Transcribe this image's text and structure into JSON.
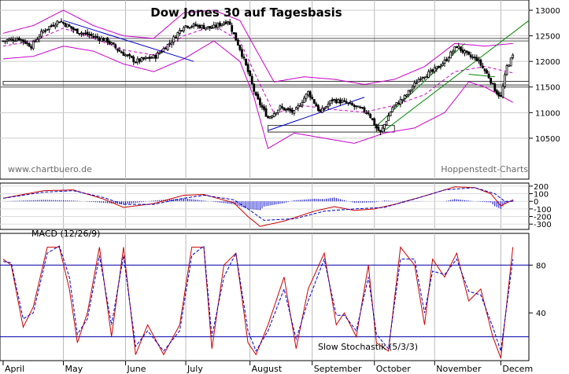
{
  "chart_data": {
    "title": "Dow Jones 30 auf Tagesbasis",
    "watermark_left": "www.chartbuero.de",
    "watermark_right": "Hoppenstedt-Charts",
    "months": [
      "April",
      "May",
      "June",
      "July",
      "August",
      "September",
      "October",
      "November",
      "Decem"
    ],
    "colors": {
      "candle": "#000000",
      "bollinger": "#cc00cc",
      "trend_blue": "#0000cc",
      "trend_green": "#008800",
      "macd_line": "#cc0000",
      "signal_line": "#0000cc",
      "histogram": "#0000cc",
      "stoch_k": "#cc0000",
      "stoch_d": "#0000cc",
      "ref_line": "#0000aa"
    },
    "price_panel": {
      "type": "candlestick",
      "ylim": [
        9700,
        13200
      ],
      "yticks": [
        10500,
        11000,
        11500,
        12000,
        12500,
        13000
      ],
      "key": [
        [
          0,
          12400
        ],
        [
          8,
          12450
        ],
        [
          14,
          12300
        ],
        [
          20,
          12600
        ],
        [
          28,
          12800
        ],
        [
          36,
          12600
        ],
        [
          44,
          12500
        ],
        [
          52,
          12400
        ],
        [
          58,
          12200
        ],
        [
          66,
          12000
        ],
        [
          76,
          12100
        ],
        [
          84,
          12400
        ],
        [
          90,
          12700
        ],
        [
          96,
          12700
        ],
        [
          104,
          12650
        ],
        [
          112,
          12800
        ],
        [
          118,
          12250
        ],
        [
          122,
          11800
        ],
        [
          126,
          11300
        ],
        [
          132,
          10900
        ],
        [
          138,
          11100
        ],
        [
          145,
          11000
        ],
        [
          152,
          11400
        ],
        [
          158,
          11000
        ],
        [
          164,
          11250
        ],
        [
          170,
          11200
        ],
        [
          176,
          11100
        ],
        [
          182,
          11000
        ],
        [
          186,
          10700
        ],
        [
          188,
          10600
        ],
        [
          194,
          11100
        ],
        [
          200,
          11300
        ],
        [
          208,
          11700
        ],
        [
          214,
          11800
        ],
        [
          220,
          12000
        ],
        [
          226,
          12300
        ],
        [
          232,
          12100
        ],
        [
          236,
          12050
        ],
        [
          242,
          11700
        ],
        [
          245,
          11450
        ],
        [
          248,
          11300
        ],
        [
          251,
          11900
        ],
        [
          254,
          12100
        ]
      ],
      "bollinger_upper_key": [
        [
          0,
          12550
        ],
        [
          15,
          12700
        ],
        [
          30,
          13000
        ],
        [
          45,
          12700
        ],
        [
          60,
          12500
        ],
        [
          75,
          12450
        ],
        [
          90,
          12950
        ],
        [
          105,
          13000
        ],
        [
          118,
          12800
        ],
        [
          125,
          12300
        ],
        [
          135,
          11600
        ],
        [
          150,
          11700
        ],
        [
          165,
          11650
        ],
        [
          180,
          11550
        ],
        [
          195,
          11650
        ],
        [
          210,
          11900
        ],
        [
          225,
          12350
        ],
        [
          240,
          12300
        ],
        [
          254,
          12350
        ]
      ],
      "bollinger_lower_key": [
        [
          0,
          12050
        ],
        [
          15,
          12100
        ],
        [
          30,
          12300
        ],
        [
          45,
          12200
        ],
        [
          60,
          11950
        ],
        [
          75,
          11800
        ],
        [
          90,
          12050
        ],
        [
          105,
          12400
        ],
        [
          118,
          12000
        ],
        [
          125,
          11300
        ],
        [
          132,
          10300
        ],
        [
          145,
          10600
        ],
        [
          160,
          10500
        ],
        [
          175,
          10400
        ],
        [
          190,
          10600
        ],
        [
          205,
          10700
        ],
        [
          220,
          11000
        ],
        [
          232,
          11600
        ],
        [
          240,
          11500
        ],
        [
          254,
          11200
        ]
      ],
      "horizontal_lines": [
        12450,
        12400,
        11500
      ],
      "support_box": {
        "x": [
          132,
          195
        ],
        "y": [
          10620,
          10750
        ]
      },
      "resistance_box": {
        "x": [
          0,
          262
        ],
        "y": [
          11540,
          11610
        ]
      },
      "trendlines": [
        {
          "color": "blue",
          "x": [
            30,
            95
          ],
          "y": [
            12800,
            12000
          ]
        },
        {
          "color": "blue",
          "x": [
            132,
            180
          ],
          "y": [
            10650,
            11300
          ]
        },
        {
          "color": "green",
          "x": [
            190,
            262
          ],
          "y": [
            10650,
            12800
          ]
        },
        {
          "color": "green",
          "x": [
            185,
            230
          ],
          "y": [
            10700,
            12350
          ]
        },
        {
          "color": "green",
          "x": [
            232,
            245
          ],
          "y": [
            11750,
            11700
          ]
        }
      ]
    },
    "macd_panel": {
      "label": "MACD (12/26/9)",
      "ylim": [
        -370,
        240
      ],
      "yticks": [
        200,
        100,
        0,
        -100,
        -200,
        -300
      ],
      "tick_labels": [
        "200",
        "100",
        "0",
        "-100",
        "-200",
        "-300"
      ],
      "macd_key": [
        [
          0,
          40
        ],
        [
          20,
          140
        ],
        [
          35,
          150
        ],
        [
          50,
          30
        ],
        [
          60,
          -80
        ],
        [
          75,
          -30
        ],
        [
          90,
          80
        ],
        [
          100,
          90
        ],
        [
          115,
          -20
        ],
        [
          122,
          -200
        ],
        [
          128,
          -330
        ],
        [
          140,
          -260
        ],
        [
          155,
          -130
        ],
        [
          165,
          -70
        ],
        [
          175,
          -120
        ],
        [
          185,
          -100
        ],
        [
          195,
          -40
        ],
        [
          210,
          70
        ],
        [
          225,
          190
        ],
        [
          235,
          180
        ],
        [
          243,
          100
        ],
        [
          248,
          -60
        ],
        [
          254,
          20
        ]
      ],
      "signal_key": [
        [
          0,
          40
        ],
        [
          20,
          120
        ],
        [
          35,
          140
        ],
        [
          50,
          50
        ],
        [
          60,
          -40
        ],
        [
          75,
          -40
        ],
        [
          90,
          40
        ],
        [
          100,
          80
        ],
        [
          115,
          20
        ],
        [
          122,
          -100
        ],
        [
          130,
          -250
        ],
        [
          145,
          -230
        ],
        [
          160,
          -130
        ],
        [
          175,
          -100
        ],
        [
          190,
          -80
        ],
        [
          205,
          30
        ],
        [
          220,
          150
        ],
        [
          235,
          180
        ],
        [
          245,
          100
        ],
        [
          250,
          0
        ],
        [
          254,
          0
        ]
      ]
    },
    "stoch_panel": {
      "label": "Slow Stochastik (5/3/3)",
      "ylim": [
        0,
        100
      ],
      "yticks": [
        40,
        80
      ],
      "tick_labels": [
        "40",
        "80"
      ],
      "ref_lines": [
        80,
        20
      ],
      "k_key": [
        [
          0,
          85
        ],
        [
          4,
          80
        ],
        [
          10,
          28
        ],
        [
          15,
          45
        ],
        [
          22,
          95
        ],
        [
          28,
          95
        ],
        [
          33,
          60
        ],
        [
          37,
          15
        ],
        [
          42,
          40
        ],
        [
          48,
          95
        ],
        [
          54,
          20
        ],
        [
          60,
          95
        ],
        [
          66,
          5
        ],
        [
          72,
          30
        ],
        [
          80,
          5
        ],
        [
          88,
          30
        ],
        [
          94,
          95
        ],
        [
          100,
          95
        ],
        [
          104,
          10
        ],
        [
          110,
          80
        ],
        [
          116,
          90
        ],
        [
          122,
          15
        ],
        [
          126,
          5
        ],
        [
          132,
          30
        ],
        [
          140,
          70
        ],
        [
          146,
          10
        ],
        [
          152,
          60
        ],
        [
          160,
          90
        ],
        [
          166,
          30
        ],
        [
          170,
          40
        ],
        [
          176,
          20
        ],
        [
          182,
          80
        ],
        [
          186,
          15
        ],
        [
          192,
          8
        ],
        [
          198,
          95
        ],
        [
          205,
          80
        ],
        [
          210,
          30
        ],
        [
          214,
          85
        ],
        [
          220,
          70
        ],
        [
          226,
          90
        ],
        [
          232,
          50
        ],
        [
          238,
          60
        ],
        [
          244,
          20
        ],
        [
          248,
          2
        ],
        [
          254,
          95
        ]
      ],
      "d_key": [
        [
          0,
          83
        ],
        [
          4,
          82
        ],
        [
          10,
          35
        ],
        [
          15,
          40
        ],
        [
          22,
          90
        ],
        [
          28,
          96
        ],
        [
          33,
          70
        ],
        [
          37,
          22
        ],
        [
          42,
          35
        ],
        [
          48,
          88
        ],
        [
          54,
          30
        ],
        [
          60,
          88
        ],
        [
          66,
          12
        ],
        [
          72,
          25
        ],
        [
          80,
          8
        ],
        [
          88,
          25
        ],
        [
          94,
          88
        ],
        [
          100,
          96
        ],
        [
          104,
          20
        ],
        [
          110,
          70
        ],
        [
          116,
          90
        ],
        [
          122,
          25
        ],
        [
          126,
          8
        ],
        [
          132,
          25
        ],
        [
          140,
          60
        ],
        [
          146,
          18
        ],
        [
          152,
          50
        ],
        [
          160,
          85
        ],
        [
          166,
          38
        ],
        [
          170,
          38
        ],
        [
          176,
          25
        ],
        [
          182,
          70
        ],
        [
          186,
          22
        ],
        [
          192,
          10
        ],
        [
          198,
          85
        ],
        [
          205,
          85
        ],
        [
          210,
          40
        ],
        [
          214,
          75
        ],
        [
          220,
          72
        ],
        [
          226,
          85
        ],
        [
          232,
          58
        ],
        [
          238,
          55
        ],
        [
          244,
          28
        ],
        [
          248,
          8
        ],
        [
          254,
          85
        ]
      ]
    }
  }
}
